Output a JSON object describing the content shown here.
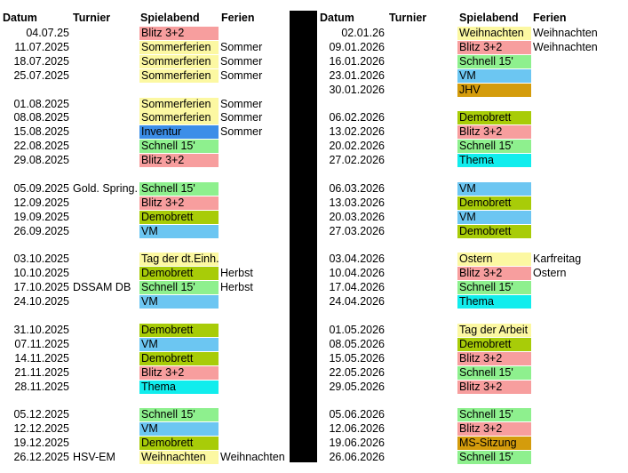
{
  "headers": {
    "datum": "Datum",
    "turnier": "Turnier",
    "spielabend": "Spielabend",
    "ferien": "Ferien"
  },
  "colors": {
    "yellow": "#fcf8a2",
    "red": "#f79e9e",
    "green": "#8ef08e",
    "olive": "#a8cc08",
    "blue": "#6cc6f2",
    "darkblue": "#3c8ee8",
    "cyan": "#11eded",
    "gold": "#d49c0c",
    "none": "transparent"
  },
  "left": [
    {
      "date": "04.07.25",
      "turnier": "",
      "event": "Blitz 3+2",
      "color": "red",
      "ferien": ""
    },
    {
      "date": "11.07.2025",
      "turnier": "",
      "event": "Sommerferien",
      "color": "yellow",
      "ferien": "Sommer"
    },
    {
      "date": "18.07.2025",
      "turnier": "",
      "event": "Sommerferien",
      "color": "yellow",
      "ferien": "Sommer"
    },
    {
      "date": "25.07.2025",
      "turnier": "",
      "event": "Sommerferien",
      "color": "yellow",
      "ferien": "Sommer"
    },
    null,
    {
      "date": "01.08.2025",
      "turnier": "",
      "event": "Sommerferien",
      "color": "yellow",
      "ferien": "Sommer"
    },
    {
      "date": "08.08.2025",
      "turnier": "",
      "event": "Sommerferien",
      "color": "yellow",
      "ferien": "Sommer"
    },
    {
      "date": "15.08.2025",
      "turnier": "",
      "event": "Inventur",
      "color": "darkblue",
      "ferien": "Sommer"
    },
    {
      "date": "22.08.2025",
      "turnier": "",
      "event": "Schnell 15'",
      "color": "green",
      "ferien": ""
    },
    {
      "date": "29.08.2025",
      "turnier": "",
      "event": "Blitz 3+2",
      "color": "red",
      "ferien": ""
    },
    null,
    {
      "date": "05.09.2025",
      "turnier": "Gold. Spring.",
      "event": "Schnell 15'",
      "color": "green",
      "ferien": ""
    },
    {
      "date": "12.09.2025",
      "turnier": "",
      "event": "Blitz 3+2",
      "color": "red",
      "ferien": ""
    },
    {
      "date": "19.09.2025",
      "turnier": "",
      "event": "Demobrett",
      "color": "olive",
      "ferien": ""
    },
    {
      "date": "26.09.2025",
      "turnier": "",
      "event": "VM",
      "color": "blue",
      "ferien": ""
    },
    null,
    {
      "date": "03.10.2025",
      "turnier": "",
      "event": "Tag der dt.Einh.",
      "color": "yellow",
      "ferien": ""
    },
    {
      "date": "10.10.2025",
      "turnier": "",
      "event": "Demobrett",
      "color": "olive",
      "ferien": "Herbst"
    },
    {
      "date": "17.10.2025",
      "turnier": "DSSAM DB",
      "event": "Schnell 15'",
      "color": "green",
      "ferien": "Herbst"
    },
    {
      "date": "24.10.2025",
      "turnier": "",
      "event": "VM",
      "color": "blue",
      "ferien": ""
    },
    null,
    {
      "date": "31.10.2025",
      "turnier": "",
      "event": "Demobrett",
      "color": "olive",
      "ferien": ""
    },
    {
      "date": "07.11.2025",
      "turnier": "",
      "event": "VM",
      "color": "blue",
      "ferien": ""
    },
    {
      "date": "14.11.2025",
      "turnier": "",
      "event": "Demobrett",
      "color": "olive",
      "ferien": ""
    },
    {
      "date": "21.11.2025",
      "turnier": "",
      "event": "Blitz 3+2",
      "color": "red",
      "ferien": ""
    },
    {
      "date": "28.11.2025",
      "turnier": "",
      "event": "Thema",
      "color": "cyan",
      "ferien": ""
    },
    null,
    {
      "date": "05.12.2025",
      "turnier": "",
      "event": "Schnell 15'",
      "color": "green",
      "ferien": ""
    },
    {
      "date": "12.12.2025",
      "turnier": "",
      "event": "VM",
      "color": "blue",
      "ferien": ""
    },
    {
      "date": "19.12.2025",
      "turnier": "",
      "event": "Demobrett",
      "color": "olive",
      "ferien": ""
    },
    {
      "date": "26.12.2025",
      "turnier": "HSV-EM",
      "event": "Weihnachten",
      "color": "yellow",
      "ferien": "Weihnachten"
    }
  ],
  "right": [
    {
      "date": "02.01.26",
      "turnier": "",
      "event": "Weihnachten",
      "color": "yellow",
      "ferien": "Weihnachten"
    },
    {
      "date": "09.01.2026",
      "turnier": "",
      "event": "Blitz 3+2",
      "color": "red",
      "ferien": "Weihnachten"
    },
    {
      "date": "16.01.2026",
      "turnier": "",
      "event": "Schnell 15'",
      "color": "green",
      "ferien": ""
    },
    {
      "date": "23.01.2026",
      "turnier": "",
      "event": "VM",
      "color": "blue",
      "ferien": ""
    },
    {
      "date": "30.01.2026",
      "turnier": "",
      "event": "JHV",
      "color": "gold",
      "ferien": ""
    },
    null,
    {
      "date": "06.02.2026",
      "turnier": "",
      "event": "Demobrett",
      "color": "olive",
      "ferien": ""
    },
    {
      "date": "13.02.2026",
      "turnier": "",
      "event": "Blitz 3+2",
      "color": "red",
      "ferien": ""
    },
    {
      "date": "20.02.2026",
      "turnier": "",
      "event": "Schnell 15'",
      "color": "green",
      "ferien": ""
    },
    {
      "date": "27.02.2026",
      "turnier": "",
      "event": "Thema",
      "color": "cyan",
      "ferien": ""
    },
    null,
    {
      "date": "06.03.2026",
      "turnier": "",
      "event": "VM",
      "color": "blue",
      "ferien": ""
    },
    {
      "date": "13.03.2026",
      "turnier": "",
      "event": "Demobrett",
      "color": "olive",
      "ferien": ""
    },
    {
      "date": "20.03.2026",
      "turnier": "",
      "event": "VM",
      "color": "blue",
      "ferien": ""
    },
    {
      "date": "27.03.2026",
      "turnier": "",
      "event": "Demobrett",
      "color": "olive",
      "ferien": ""
    },
    null,
    {
      "date": "03.04.2026",
      "turnier": "",
      "event": "Ostern",
      "color": "yellow",
      "ferien": "Karfreitag"
    },
    {
      "date": "10.04.2026",
      "turnier": "",
      "event": "Blitz 3+2",
      "color": "red",
      "ferien": "Ostern"
    },
    {
      "date": "17.04.2026",
      "turnier": "",
      "event": "Schnell 15'",
      "color": "green",
      "ferien": ""
    },
    {
      "date": "24.04.2026",
      "turnier": "",
      "event": "Thema",
      "color": "cyan",
      "ferien": ""
    },
    null,
    {
      "date": "01.05.2026",
      "turnier": "",
      "event": "Tag der Arbeit",
      "color": "yellow",
      "ferien": ""
    },
    {
      "date": "08.05.2026",
      "turnier": "",
      "event": "Demobrett",
      "color": "olive",
      "ferien": ""
    },
    {
      "date": "15.05.2026",
      "turnier": "",
      "event": "Blitz 3+2",
      "color": "red",
      "ferien": ""
    },
    {
      "date": "22.05.2026",
      "turnier": "",
      "event": "Schnell 15'",
      "color": "green",
      "ferien": ""
    },
    {
      "date": "29.05.2026",
      "turnier": "",
      "event": "Blitz 3+2",
      "color": "red",
      "ferien": ""
    },
    null,
    {
      "date": "05.06.2026",
      "turnier": "",
      "event": "Schnell 15'",
      "color": "green",
      "ferien": ""
    },
    {
      "date": "12.06.2026",
      "turnier": "",
      "event": "Blitz 3+2",
      "color": "red",
      "ferien": ""
    },
    {
      "date": "19.06.2026",
      "turnier": "",
      "event": "MS-Sitzung",
      "color": "gold",
      "ferien": ""
    },
    {
      "date": "26.06.2026",
      "turnier": "",
      "event": "Schnell 15'",
      "color": "green",
      "ferien": ""
    }
  ]
}
